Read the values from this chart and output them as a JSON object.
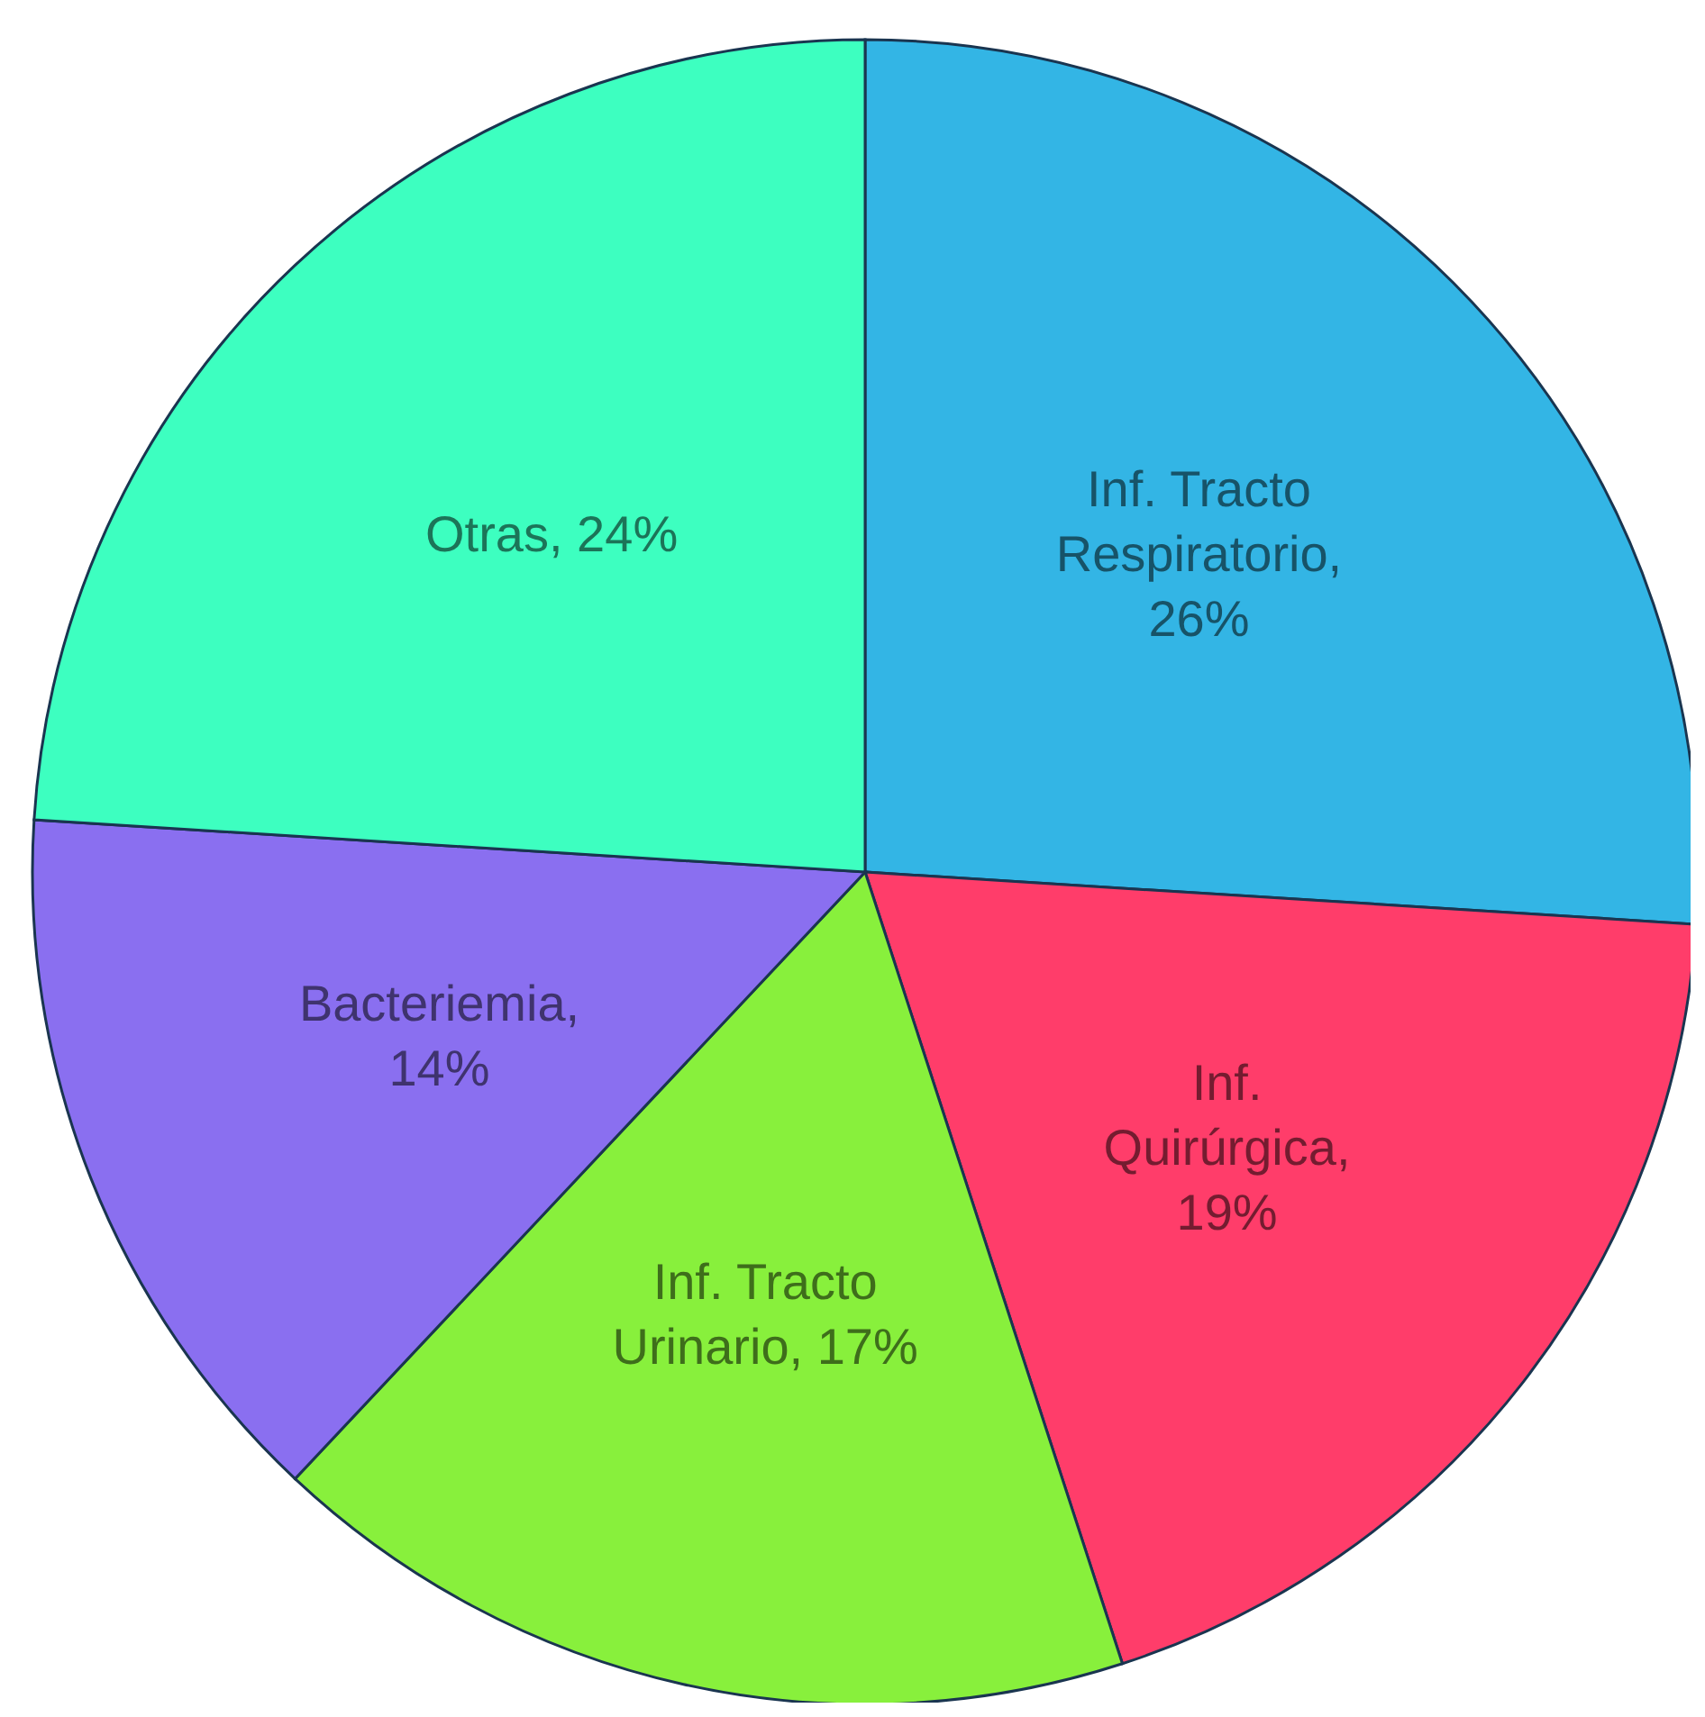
{
  "chart_data": {
    "type": "pie",
    "categories": [
      "Inf. Tracto Respiratorio",
      "Inf. Quirúrgica",
      "Inf. Tracto Urinario",
      "Bacteriemia",
      "Otras"
    ],
    "values": [
      26,
      19,
      17,
      14,
      24
    ],
    "value_labels": [
      ", 26%",
      ", 19%",
      ", 17%",
      ", 14%",
      ", 24%"
    ],
    "colors": [
      "#33b5e5",
      "#ff3d6a",
      "#88f03c",
      "#8a6ff0",
      "#3dffc0"
    ],
    "legend": false
  }
}
